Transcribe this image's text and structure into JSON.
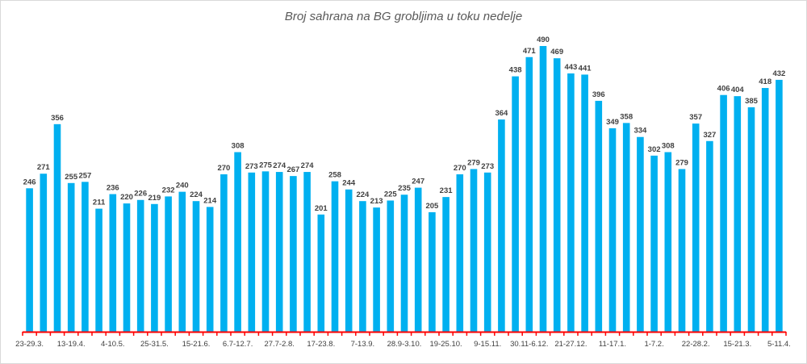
{
  "chart_data": {
    "type": "bar",
    "title": "Broj sahrana na BG grobljima u toku nedelje",
    "xlabel": "",
    "ylabel": "",
    "ylim": [
      0,
      500
    ],
    "grid": false,
    "legend": "none",
    "bar_color": "#00b0f0",
    "axis_color": "#ff0000",
    "categories": [
      "23-29.3.",
      "",
      "",
      "13-19.4.",
      "",
      "",
      "4-10.5.",
      "",
      "",
      "25-31.5.",
      "",
      "",
      "15-21.6.",
      "",
      "",
      "6.7-12.7.",
      "",
      "",
      "27.7-2.8.",
      "",
      "",
      "17-23.8.",
      "",
      "",
      "7-13.9.",
      "",
      "",
      "28.9-3.10.",
      "",
      "",
      "19-25.10.",
      "",
      "",
      "9-15.11.",
      "",
      "",
      "30.11-6.12.",
      "",
      "",
      "21-27.12.",
      "",
      "",
      "11-17.1.",
      "",
      "",
      "1-7.2.",
      "",
      "",
      "22-28.2.",
      "",
      "",
      "15-21.3.",
      "",
      "",
      "5-11.4."
    ],
    "values": [
      246,
      271,
      356,
      255,
      257,
      211,
      236,
      220,
      226,
      219,
      232,
      240,
      224,
      214,
      270,
      308,
      273,
      275,
      274,
      267,
      274,
      201,
      258,
      244,
      224,
      213,
      225,
      235,
      247,
      205,
      231,
      270,
      279,
      273,
      364,
      438,
      471,
      490,
      469,
      443,
      441,
      396,
      349,
      358,
      334,
      302,
      308,
      279,
      357,
      327,
      406,
      404,
      385,
      418,
      432
    ]
  }
}
